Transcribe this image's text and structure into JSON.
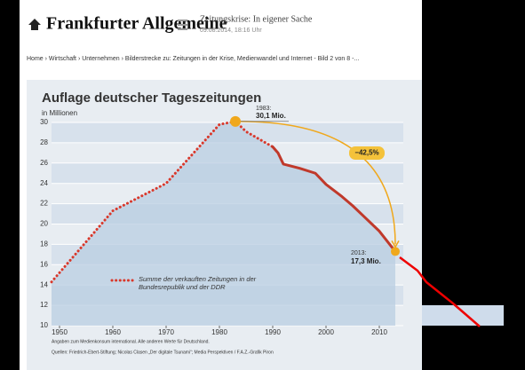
{
  "header": {
    "logo": "Frankfurter Allgemeine",
    "article_title": "Zeitungskrise: In eigener Sache",
    "date": "09.08.2014, 18:16 Uhr"
  },
  "breadcrumb": "Home › Wirtschaft › Unternehmen › Bilderstrecke zu: Zeitungen in der Krise, Medienwandel und Internet - Bild 2 von 8 -...",
  "chart_data": {
    "type": "line",
    "title": "Auflage deutscher Tageszeitungen",
    "y_label": "in Millionen",
    "xlim": [
      1948.5,
      2014.5
    ],
    "ylim": [
      10,
      30
    ],
    "xticks": [
      1950,
      1960,
      1970,
      1980,
      1990,
      2000,
      2010
    ],
    "yticks": [
      10,
      12,
      14,
      16,
      18,
      20,
      22,
      24,
      26,
      28,
      30
    ],
    "series": [
      {
        "name": "Summe der verkauften Zeitungen in der Bundesrepublik und der DDR",
        "color": "#d9382b",
        "style": "dotted",
        "x": [
          1948.5,
          1960,
          1970,
          1980,
          1983,
          1985,
          1990
        ],
        "values": [
          14.3,
          21.3,
          24.0,
          29.8,
          30.1,
          29.1,
          27.6
        ]
      },
      {
        "color": "#c0392b",
        "style": "solid",
        "x": [
          1990,
          1991,
          1992,
          1995,
          1998,
          2000,
          2003,
          2005,
          2007,
          2010,
          2013
        ],
        "values": [
          27.6,
          27.0,
          25.9,
          25.5,
          25.0,
          23.9,
          22.7,
          21.8,
          20.8,
          19.3,
          17.3
        ]
      }
    ],
    "annotations": [
      "1983:",
      "30,1 Mio.",
      "−42,5%",
      "2013:",
      "17,3 Mio."
    ],
    "notes": [
      "Angaben zum Medienkonsum international. Alle anderen Werte für Deutschland.",
      "Quellen: Friedrich-Ebert-Stiftung; Nicolas Clasen „Der digitale Tsunami“; Media Perspektiven / F.A.Z.-Grafik Piron"
    ]
  }
}
